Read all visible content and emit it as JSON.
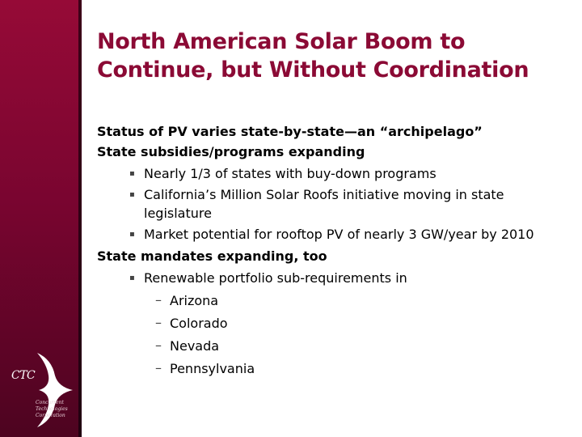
{
  "slide": {
    "title": "North American Solar Boom to Continue, but Without Coordination"
  },
  "logo": {
    "text": "CTC",
    "caption": "Concurrent Technologies Corporation"
  },
  "bullets": {
    "item1": "Status of PV varies state-by-state—an “archipelago”",
    "item2": "State subsidies/programs expanding",
    "item2_sub": [
      "Nearly 1/3 of states with buy-down programs",
      "California’s Million Solar Roofs initiative moving in state legislature",
      "Market potential for rooftop PV of nearly 3 GW/year by 2010"
    ],
    "item3": "State mandates expanding, too",
    "item3_sub": [
      "Renewable portfolio sub-requirements in"
    ],
    "item3_sub_sub": [
      "Arizona",
      "Colorado",
      "Nevada",
      "Pennsylvania"
    ]
  },
  "glyphs": {
    "bullet": "▪",
    "dash": "–"
  },
  "colors": {
    "sidebar": "#8b0a35",
    "title": "#8b0a35"
  }
}
